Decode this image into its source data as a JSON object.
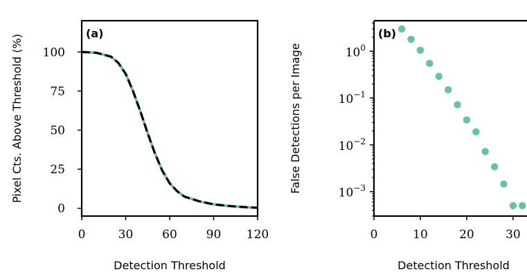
{
  "chart_data": [
    {
      "type": "line",
      "panel_label": "(a)",
      "xlabel": "Detection Threshold",
      "ylabel": "Pixel Cts. Above Threshold (%)",
      "xlim": [
        0,
        120
      ],
      "ylim": [
        -5,
        120
      ],
      "xticks": [
        0,
        30,
        60,
        90,
        120
      ],
      "yticks": [
        0,
        25,
        50,
        75,
        100
      ],
      "grid": false,
      "colors": {
        "solid": "#66c2a5",
        "dashed": "#000000"
      },
      "series": [
        {
          "style": "solid",
          "x": [
            0,
            10,
            20,
            25,
            30,
            35,
            40,
            45,
            50,
            55,
            60,
            65,
            70,
            80,
            90,
            100,
            110,
            120
          ],
          "y": [
            100,
            99.5,
            97,
            93,
            86,
            75,
            62,
            48,
            35,
            24,
            16,
            11,
            7.5,
            4.5,
            2.5,
            1.5,
            0.8,
            0.3
          ]
        },
        {
          "style": "dashed",
          "x": [
            0,
            10,
            20,
            25,
            30,
            35,
            40,
            45,
            50,
            55,
            60,
            65,
            70,
            80,
            90,
            100,
            110,
            120
          ],
          "y": [
            100,
            99.5,
            97,
            93,
            86,
            75,
            62,
            48,
            35,
            24,
            16,
            11,
            7.5,
            4.5,
            2.5,
            1.5,
            0.8,
            0.3
          ]
        }
      ]
    },
    {
      "type": "scatter",
      "panel_label": "(b)",
      "xlabel": "Detection Threshold",
      "ylabel": "False Detections per Image",
      "yscale": "log",
      "xlim": [
        0,
        33
      ],
      "ylim": [
        0.0003,
        4.5
      ],
      "xticks": [
        0,
        10,
        20,
        30
      ],
      "yticks": [
        1,
        0.1,
        0.01,
        0.001
      ],
      "ytick_labels": [
        {
          "base": "10",
          "exp": "0"
        },
        {
          "base": "10",
          "exp": "−1"
        },
        {
          "base": "10",
          "exp": "−2"
        },
        {
          "base": "10",
          "exp": "−3"
        }
      ],
      "grid": false,
      "color": "#66c2a5",
      "x": [
        6,
        8,
        10,
        12,
        14,
        16,
        18,
        20,
        22,
        24,
        26,
        28,
        30,
        32
      ],
      "y": [
        3.0,
        1.8,
        1.05,
        0.55,
        0.29,
        0.15,
        0.072,
        0.034,
        0.019,
        0.0072,
        0.0034,
        0.00145,
        0.0005,
        0.0005
      ]
    }
  ]
}
